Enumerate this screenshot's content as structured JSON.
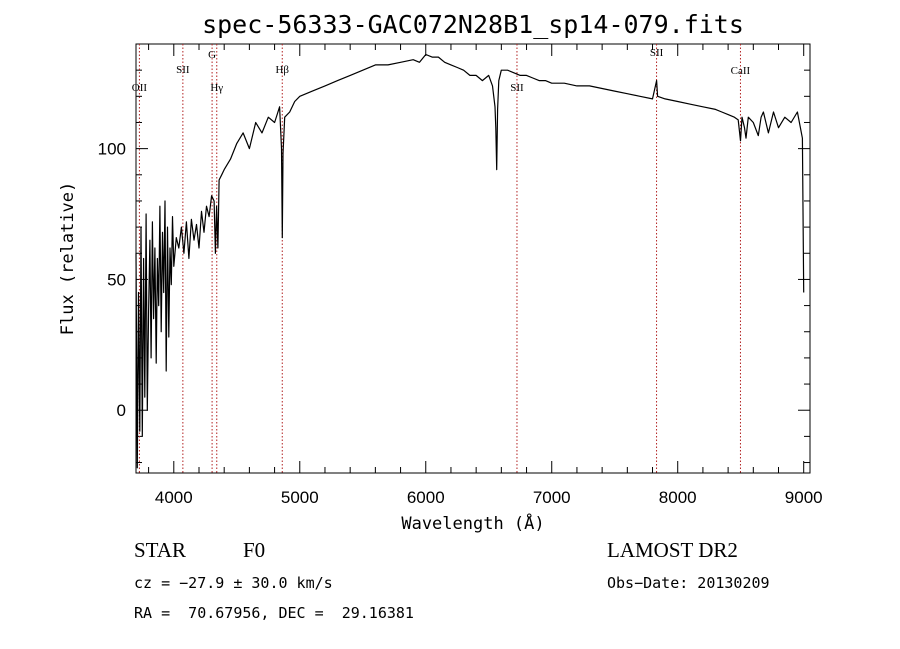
{
  "chart_data": {
    "type": "line",
    "title": "spec-56333-GAC072N28B1_sp14-079.fits",
    "xlabel": "Wavelength (Å)",
    "ylabel": "Flux (relative)",
    "xlim": [
      3700,
      9050
    ],
    "ylim": [
      -24,
      140
    ],
    "xticks": [
      4000,
      5000,
      6000,
      7000,
      8000,
      9000
    ],
    "yticks": [
      0,
      50,
      100
    ],
    "grid": false,
    "series_color": "#000000",
    "line_marker_color": "#b22222",
    "line_markers": [
      {
        "label": "OII",
        "wavelength": 3727
      },
      {
        "label": "SII",
        "wavelength": 4072
      },
      {
        "label": "G",
        "wavelength": 4304
      },
      {
        "label": "Hγ",
        "wavelength": 4341
      },
      {
        "label": "Hβ",
        "wavelength": 4861
      },
      {
        "label": "SII",
        "wavelength": 6724
      },
      {
        "label": "SII",
        "wavelength": 7832
      },
      {
        "label": "CaII",
        "wavelength": 8498
      }
    ],
    "series": [
      {
        "x": [
          3700,
          3710,
          3720,
          3730,
          3740,
          3750,
          3760,
          3770,
          3780,
          3790,
          3800,
          3810,
          3820,
          3830,
          3840,
          3850,
          3860,
          3870,
          3880,
          3890,
          3900,
          3910,
          3920,
          3930,
          3940,
          3950,
          3960,
          3970,
          3980,
          3990,
          4000,
          4020,
          4040,
          4060,
          4080,
          4100,
          4120,
          4140,
          4160,
          4180,
          4200,
          4220,
          4240,
          4260,
          4280,
          4300,
          4320,
          4330,
          4340,
          4350,
          4360,
          4380,
          4400,
          4450,
          4500,
          4550,
          4600,
          4650,
          4700,
          4750,
          4800,
          4840,
          4855,
          4861,
          4867,
          4880,
          4920,
          4960,
          5000,
          5100,
          5200,
          5300,
          5400,
          5500,
          5600,
          5700,
          5800,
          5900,
          5950,
          6000,
          6050,
          6100,
          6150,
          6200,
          6250,
          6300,
          6350,
          6400,
          6450,
          6500,
          6530,
          6550,
          6556,
          6563,
          6570,
          6580,
          6600,
          6650,
          6700,
          6750,
          6800,
          6850,
          6900,
          6950,
          7000,
          7100,
          7200,
          7300,
          7400,
          7500,
          7600,
          7700,
          7800,
          7832,
          7840,
          7900,
          8000,
          8100,
          8200,
          8300,
          8350,
          8400,
          8450,
          8480,
          8498,
          8510,
          8530,
          8542,
          8560,
          8600,
          8640,
          8662,
          8680,
          8720,
          8760,
          8800,
          8850,
          8900,
          8950,
          8990,
          9000
        ],
        "y": [
          60,
          -22,
          45,
          -8,
          70,
          -10,
          58,
          5,
          75,
          0,
          38,
          65,
          20,
          72,
          35,
          62,
          18,
          58,
          40,
          78,
          30,
          68,
          45,
          80,
          15,
          70,
          28,
          62,
          48,
          74,
          55,
          66,
          62,
          70,
          60,
          72,
          58,
          73,
          65,
          71,
          62,
          76,
          68,
          78,
          74,
          82,
          80,
          60,
          78,
          62,
          88,
          90,
          92,
          96,
          102,
          106,
          100,
          110,
          106,
          112,
          110,
          116,
          100,
          66,
          98,
          112,
          114,
          118,
          120,
          122,
          124,
          126,
          128,
          130,
          132,
          132,
          133,
          134,
          133,
          136,
          135,
          135,
          133,
          132,
          131,
          130,
          128,
          128,
          126,
          128,
          124,
          116,
          108,
          92,
          115,
          126,
          130,
          130,
          129,
          128,
          128,
          127,
          126,
          126,
          125,
          125,
          124,
          124,
          123,
          122,
          121,
          120,
          119,
          126,
          120,
          119,
          118,
          117,
          116,
          115,
          114,
          113,
          112,
          111,
          103,
          112,
          108,
          104,
          112,
          110,
          105,
          112,
          114,
          106,
          114,
          108,
          112,
          110,
          114,
          104,
          45
        ]
      }
    ]
  },
  "info": {
    "class_label": "STAR",
    "subclass": "F0",
    "survey": "LAMOST DR2",
    "cz": "cz = −27.9 ± 30.0 km/s",
    "obs_date": "Obs−Date: 20130209",
    "coords": "RA =  70.67956, DEC =  29.16381"
  }
}
